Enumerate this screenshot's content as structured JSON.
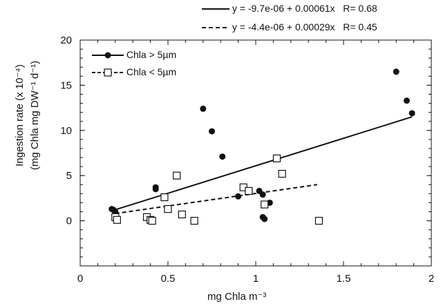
{
  "chart_data": {
    "type": "scatter",
    "title": "",
    "xlabel": "mg Chla m⁻³",
    "ylabel_line1": "Ingestion rate (x 10⁻⁴)",
    "ylabel_line2": "(mg Chla mg DW⁻¹ d⁻¹)",
    "xlim": [
      0,
      2
    ],
    "ylim": [
      -5,
      20
    ],
    "x_ticks": [
      0,
      0.5,
      1,
      1.5,
      2
    ],
    "x_tick_labels": [
      "0",
      "0.5",
      "1",
      "1.5",
      "2"
    ],
    "y_ticks": [
      0,
      5,
      10,
      15,
      20
    ],
    "y_tick_labels": [
      "0",
      "5",
      "10",
      "15",
      "20"
    ],
    "grid": false,
    "legend_position": "top-left",
    "fit_equations": [
      "y = -9.7e-06 + 0.00061x   R= 0.68",
      "y = -4.4e-06 + 0.00029x   R= 0.45"
    ],
    "series": [
      {
        "name": "Chla > 5µm",
        "marker": "filled-circle",
        "x": [
          0.18,
          0.19,
          0.2,
          0.43,
          0.43,
          0.7,
          0.75,
          0.81,
          0.9,
          1.02,
          1.04,
          1.04,
          1.05,
          1.08,
          1.8,
          1.86,
          1.89
        ],
        "y": [
          1.3,
          1.2,
          1.0,
          3.7,
          3.5,
          12.4,
          9.9,
          7.1,
          2.7,
          3.3,
          2.9,
          0.4,
          0.2,
          2.0,
          16.5,
          13.3,
          11.9
        ],
        "fit": {
          "x": [
            0.18,
            1.89
          ],
          "y": [
            1.1,
            11.5
          ],
          "dash": "solid"
        }
      },
      {
        "name": "Chla < 5µm",
        "marker": "open-square",
        "x": [
          0.2,
          0.21,
          0.38,
          0.4,
          0.41,
          0.48,
          0.5,
          0.55,
          0.58,
          0.65,
          0.93,
          0.96,
          1.05,
          1.12,
          1.15,
          1.36
        ],
        "y": [
          0.4,
          0.1,
          0.4,
          0.1,
          0.0,
          2.6,
          1.3,
          5.0,
          0.7,
          0.0,
          3.7,
          3.3,
          1.8,
          6.9,
          5.2,
          0.0
        ],
        "fit": {
          "x": [
            0.2,
            1.35
          ],
          "y": [
            0.8,
            4.0
          ],
          "dash": "dashed"
        }
      }
    ]
  }
}
